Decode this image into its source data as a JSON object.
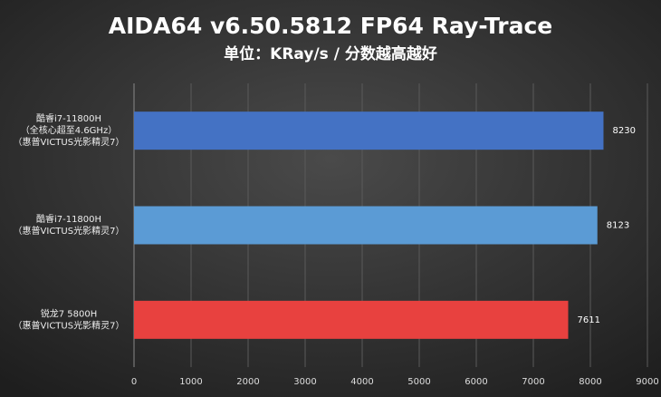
{
  "chart_data": {
    "type": "hbar",
    "title": "AIDA64 v6.50.5812 FP64 Ray-Trace",
    "subtitle": "单位：KRay/s / 分数越高越好",
    "categories": [
      [
        "酷睿i7-11800H",
        "（全核心超至4.6GHz）",
        "（惠普VICTUS光影精灵7）"
      ],
      [
        "酷睿i7-11800H",
        "（惠普VICTUS光影精灵7）"
      ],
      [
        "锐龙7 5800H",
        "（惠普VICTUS光影精灵7）"
      ]
    ],
    "values": [
      8230,
      8123,
      7611
    ],
    "colors": [
      "#4472c4",
      "#5b9bd5",
      "#e8413f"
    ],
    "xlim": [
      0,
      9000
    ],
    "xticks": [
      0,
      1000,
      2000,
      3000,
      4000,
      5000,
      6000,
      7000,
      8000,
      9000
    ],
    "grid": true
  }
}
